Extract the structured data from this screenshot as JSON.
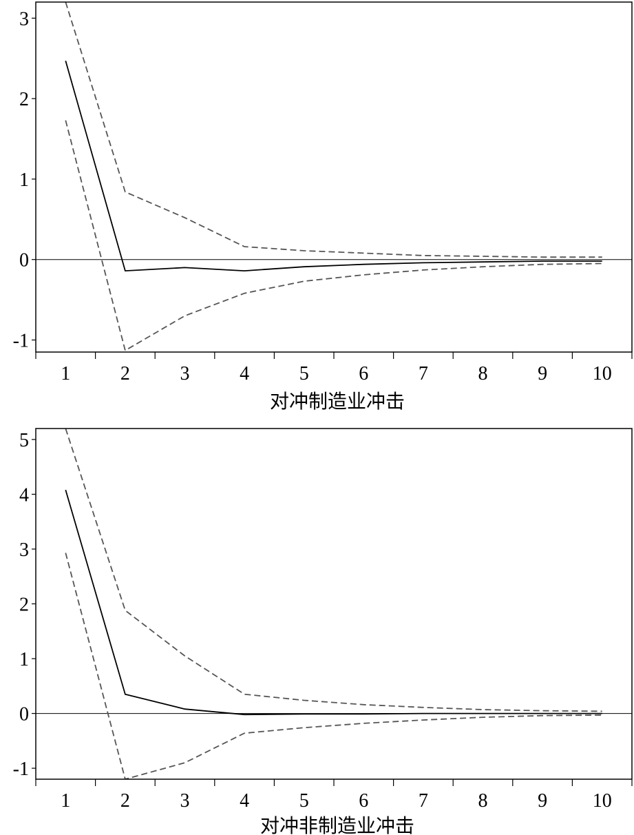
{
  "chart_data": [
    {
      "type": "line",
      "title": "",
      "xlabel": "对冲制造业冲击",
      "ylabel": "",
      "x": [
        1,
        2,
        3,
        4,
        5,
        6,
        7,
        8,
        9,
        10
      ],
      "ylim": [
        -1.15,
        3.2
      ],
      "yticks": [
        -1,
        0,
        1,
        2,
        3
      ],
      "grid": false,
      "zero_line": true,
      "series": [
        {
          "style": "solid",
          "color": "#000000",
          "values": [
            2.47,
            -0.14,
            -0.1,
            -0.14,
            -0.09,
            -0.06,
            -0.04,
            -0.03,
            -0.02,
            -0.02
          ]
        },
        {
          "style": "dashed",
          "color": "#555555",
          "values": [
            3.2,
            0.84,
            0.52,
            0.16,
            0.11,
            0.08,
            0.05,
            0.04,
            0.03,
            0.03
          ]
        },
        {
          "style": "dashed",
          "color": "#555555",
          "values": [
            1.73,
            -1.13,
            -0.7,
            -0.42,
            -0.27,
            -0.19,
            -0.13,
            -0.09,
            -0.06,
            -0.05
          ]
        }
      ]
    },
    {
      "type": "line",
      "title": "",
      "xlabel": "对冲非制造业冲击",
      "ylabel": "",
      "x": [
        1,
        2,
        3,
        4,
        5,
        6,
        7,
        8,
        9,
        10
      ],
      "ylim": [
        -1.2,
        5.2
      ],
      "yticks": [
        -1,
        0,
        1,
        2,
        3,
        4,
        5
      ],
      "grid": false,
      "zero_line": true,
      "series": [
        {
          "style": "solid",
          "color": "#000000",
          "values": [
            4.08,
            0.35,
            0.08,
            -0.02,
            -0.01,
            -0.01,
            0.0,
            0.0,
            0.0,
            0.0
          ]
        },
        {
          "style": "dashed",
          "color": "#555555",
          "values": [
            5.2,
            1.88,
            1.05,
            0.35,
            0.24,
            0.16,
            0.11,
            0.07,
            0.05,
            0.04
          ]
        },
        {
          "style": "dashed",
          "color": "#555555",
          "values": [
            2.93,
            -1.2,
            -0.9,
            -0.36,
            -0.26,
            -0.18,
            -0.12,
            -0.07,
            -0.04,
            -0.03
          ]
        }
      ]
    }
  ]
}
